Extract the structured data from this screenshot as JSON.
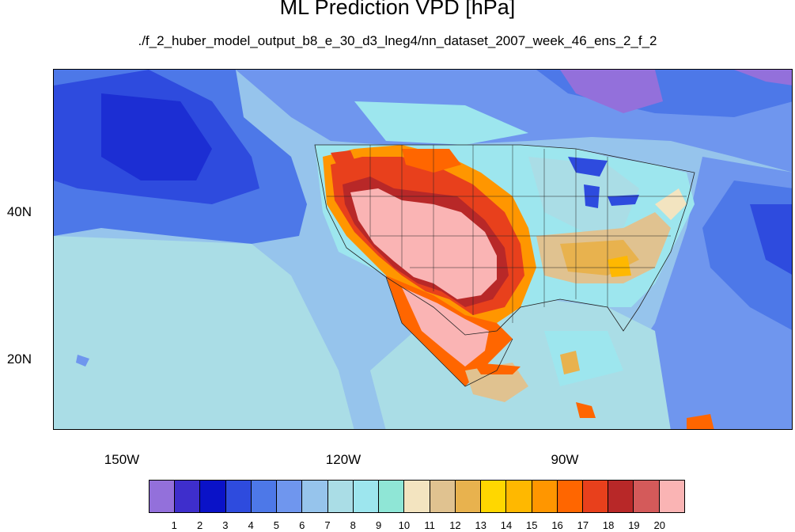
{
  "title": "ML Prediction VPD [hPa]",
  "subtitle": "./f_2_huber_model_output_b8_e_30_d3_lneg4/nn_dataset_2007_week_46_ens_2_f_2",
  "map": {
    "projection": "cylindrical-equidistant",
    "variable": "VPD",
    "units": "hPa",
    "lon_range": [
      -160,
      -60
    ],
    "lat_range": [
      10,
      60
    ],
    "lat_ticks": [
      {
        "value": 40,
        "label": "40N"
      },
      {
        "value": 20,
        "label": "20N"
      }
    ],
    "lon_ticks": [
      {
        "value": -150,
        "label": "150W"
      },
      {
        "value": -120,
        "label": "120W"
      },
      {
        "value": -90,
        "label": "90W"
      }
    ]
  },
  "colorbar": {
    "labels": [
      "1",
      "2",
      "3",
      "4",
      "5",
      "6",
      "7",
      "8",
      "9",
      "10",
      "11",
      "12",
      "13",
      "14",
      "15",
      "16",
      "17",
      "18",
      "19",
      "20"
    ],
    "colors": [
      "#9370DB",
      "#3E2ECC",
      "#0A12C8",
      "#2E4BDE",
      "#4D78E8",
      "#6F96EE",
      "#96C4EC",
      "#AADDE6",
      "#9DE6EE",
      "#8FE6D6",
      "#F3E4C0",
      "#E0C290",
      "#E8B24E",
      "#FFD700",
      "#FFB800",
      "#FF9600",
      "#FF6600",
      "#E8401C",
      "#B82828",
      "#D45A5A",
      "#FAB4B4"
    ]
  }
}
